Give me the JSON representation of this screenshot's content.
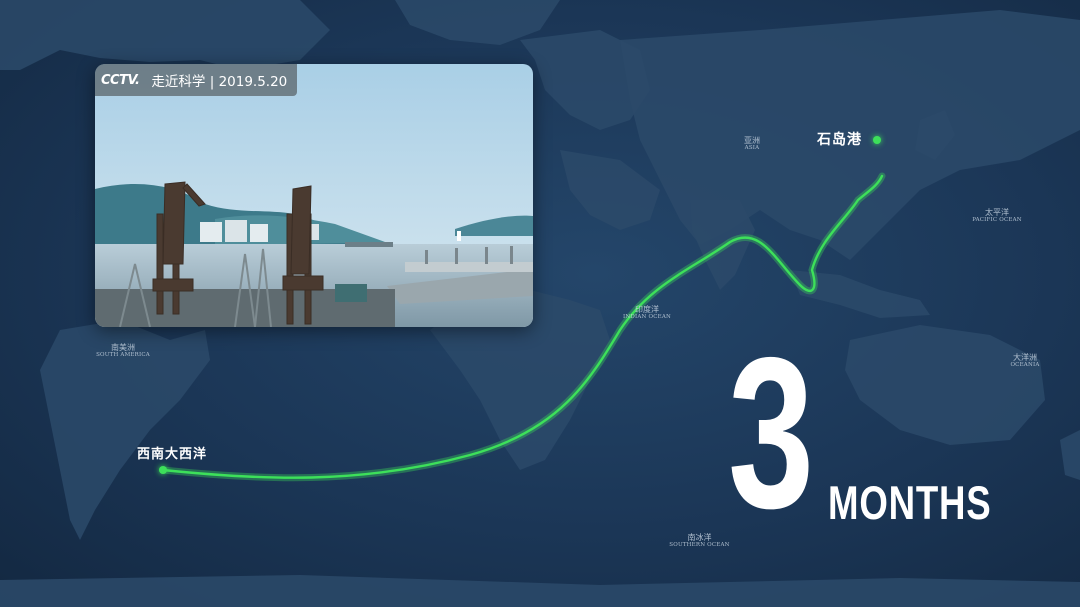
{
  "broadcast": {
    "logo_text": "CCTV.",
    "program_label": "走近科学 | 2019.5.20"
  },
  "map": {
    "regions": [
      {
        "id": "south-america",
        "zh": "南美洲",
        "en": "SOUTH AMERICA"
      },
      {
        "id": "asia",
        "zh": "亚洲",
        "en": "ASIA"
      },
      {
        "id": "indian-ocean",
        "zh": "印度洋",
        "en": "INDIAN OCEAN"
      },
      {
        "id": "pacific-ocean",
        "zh": "太平洋",
        "en": "PACIFIC OCEAN"
      },
      {
        "id": "oceania",
        "zh": "大洋洲",
        "en": "OCEANIA"
      },
      {
        "id": "southern-ocean",
        "zh": "南冰洋",
        "en": "SOUTHERN OCEAN"
      }
    ],
    "route": {
      "origin": "西南大西洋",
      "destination": "石岛港",
      "color": "#3de05a"
    }
  },
  "duration": {
    "number": "3",
    "unit": "MONTHS"
  },
  "colors": {
    "ocean": "#1c3652",
    "land": "#2b4a6a",
    "route": "#3de05a"
  }
}
